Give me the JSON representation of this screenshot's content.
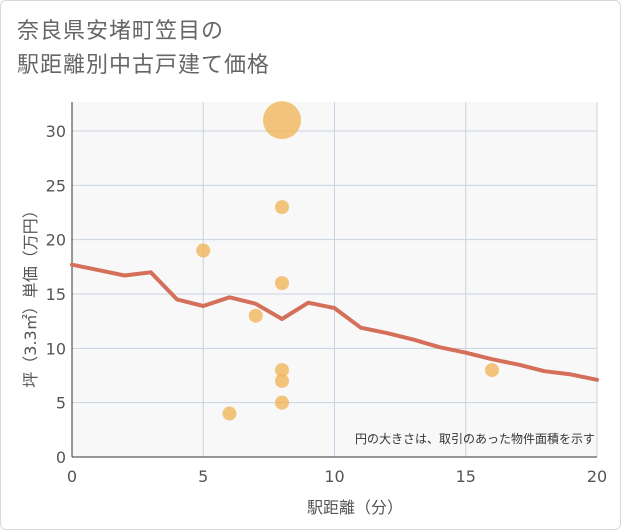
{
  "title": {
    "line1": "奈良県安堵町笠目の",
    "line2": "駅距離別中古戸建て価格"
  },
  "chart_data": {
    "type": "scatter+line",
    "xlabel": "駅距離（分）",
    "ylabel": "坪（3.3㎡）単価（万円）",
    "xlim": [
      0,
      20
    ],
    "ylim": [
      0,
      32
    ],
    "xticks": [
      0,
      5,
      10,
      15,
      20
    ],
    "yticks": [
      0,
      5,
      10,
      15,
      20,
      25,
      30
    ],
    "grid": true,
    "note": "円の大きさは、取引のあった物件面積を示す",
    "colors": {
      "line": "#d4705a",
      "bubble": "#f0b55a",
      "grid": "#c7d3e0",
      "plot_bg": "#f8f8f8"
    },
    "scatter": [
      {
        "x": 8,
        "y": 31,
        "size": 3
      },
      {
        "x": 8,
        "y": 23,
        "size": 1
      },
      {
        "x": 5,
        "y": 19,
        "size": 1
      },
      {
        "x": 8,
        "y": 16,
        "size": 1
      },
      {
        "x": 7,
        "y": 13,
        "size": 1
      },
      {
        "x": 8,
        "y": 8,
        "size": 1
      },
      {
        "x": 8,
        "y": 7,
        "size": 1
      },
      {
        "x": 16,
        "y": 8,
        "size": 1
      },
      {
        "x": 8,
        "y": 5,
        "size": 1
      },
      {
        "x": 6,
        "y": 4,
        "size": 1
      }
    ],
    "line": {
      "x": [
        0,
        1,
        2,
        3,
        4,
        5,
        6,
        7,
        8,
        9,
        10,
        11,
        12,
        13,
        14,
        15,
        16,
        17,
        18,
        19,
        20
      ],
      "y": [
        17.7,
        17.2,
        16.7,
        17.0,
        14.5,
        13.9,
        14.7,
        14.1,
        12.7,
        14.2,
        13.7,
        11.9,
        11.4,
        10.8,
        10.1,
        9.6,
        9.0,
        8.5,
        7.9,
        7.6,
        7.1
      ]
    }
  }
}
